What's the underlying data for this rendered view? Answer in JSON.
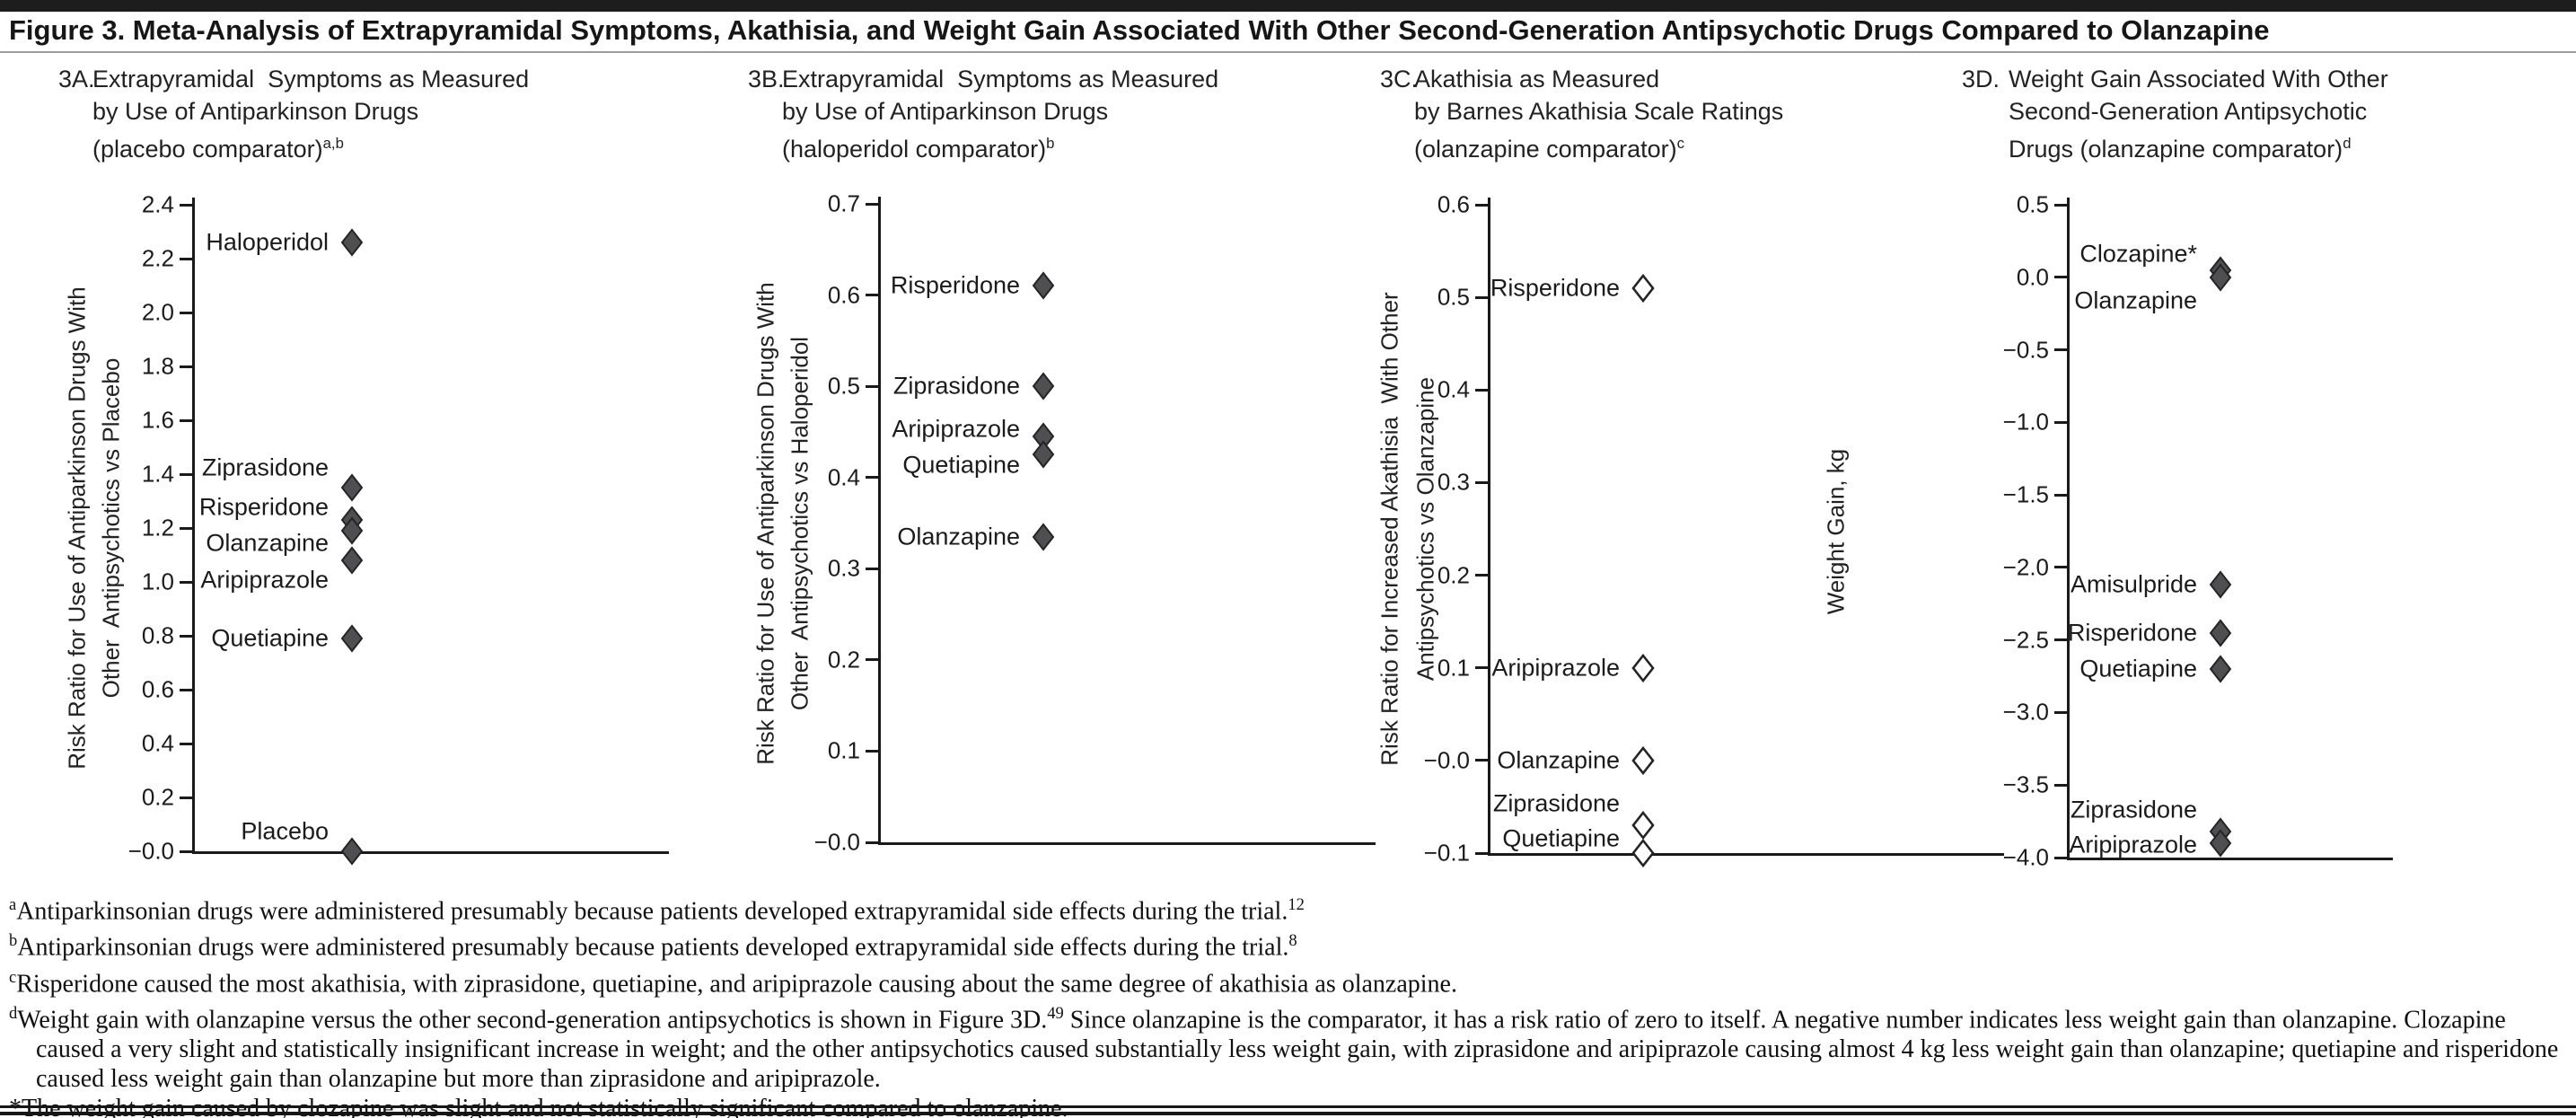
{
  "figure": {
    "title": "Figure 3. Meta-Analysis of Extrapyramidal Symptoms, Akathisia, and Weight Gain Associated With Other Second-Generation Antipsychotic Drugs Compared to Olanzapine"
  },
  "chart_data": [
    {
      "id": "3A",
      "type": "scatter",
      "panel_label": "3A.",
      "title_lines": [
        "Extrapyramidal  Symptoms as Measured",
        "by Use of Antiparkinson Drugs",
        "(placebo comparator)"
      ],
      "title_superscript": "a,b",
      "ylabel_lines": [
        "Risk Ratio for Use of Antiparkinson Drugs With",
        "Other  Antipsychotics vs Placebo"
      ],
      "ylim": [
        0.0,
        2.4
      ],
      "ytick_step": 0.2,
      "marker": "filled-diamond",
      "points": [
        {
          "label": "Haloperidol",
          "value": 2.26,
          "label_dy": 0
        },
        {
          "label": "Ziprasidone",
          "value": 1.35,
          "label_dy": -22
        },
        {
          "label": "Risperidone",
          "value": 1.23,
          "label_dy": -14
        },
        {
          "label": "Olanzapine",
          "value": 1.19,
          "label_dy": 14
        },
        {
          "label": "Aripiprazole",
          "value": 1.08,
          "label_dy": 22
        },
        {
          "label": "Quetiapine",
          "value": 0.79,
          "label_dy": 0
        },
        {
          "label": "Placebo",
          "value": 0.0,
          "label_dy": -22
        }
      ]
    },
    {
      "id": "3B",
      "type": "scatter",
      "panel_label": "3B.",
      "title_lines": [
        "Extrapyramidal  Symptoms as Measured",
        "by Use of Antiparkinson Drugs",
        "(haloperidol comparator)"
      ],
      "title_superscript": "b",
      "ylabel_lines": [
        "Risk Ratio for Use of Antiparkinson Drugs With",
        "Other  Antipsychotics vs Haloperidol"
      ],
      "ylim": [
        0.0,
        0.7
      ],
      "ytick_step": 0.1,
      "marker": "filled-diamond",
      "points": [
        {
          "label": "Risperidone",
          "value": 0.61,
          "label_dy": 0
        },
        {
          "label": "Ziprasidone",
          "value": 0.5,
          "label_dy": 0
        },
        {
          "label": "Aripiprazole",
          "value": 0.445,
          "label_dy": -8
        },
        {
          "label": "Quetiapine",
          "value": 0.425,
          "label_dy": 12
        },
        {
          "label": "Olanzapine",
          "value": 0.335,
          "label_dy": 0
        }
      ]
    },
    {
      "id": "3C",
      "type": "scatter",
      "panel_label": "3C.",
      "title_lines": [
        "Akathisia as Measured",
        "by Barnes Akathisia Scale Ratings",
        "(olanzapine comparator)"
      ],
      "title_superscript": "c",
      "ylabel_lines": [
        "Risk Ratio for Increased Akathisia  With Other",
        "Antipsychotics vs Olanzapine"
      ],
      "ylim": [
        -0.1,
        0.6
      ],
      "ytick_step": 0.1,
      "marker": "open-diamond",
      "points": [
        {
          "label": "Risperidone",
          "value": 0.51,
          "label_dy": 0
        },
        {
          "label": "Aripiprazole",
          "value": 0.1,
          "label_dy": 0
        },
        {
          "label": "Olanzapine",
          "value": 0.0,
          "label_dy": 0
        },
        {
          "label": "Ziprasidone",
          "value": -0.07,
          "label_dy": -24
        },
        {
          "label": "Quetiapine",
          "value": -0.1,
          "label_dy": -16
        }
      ]
    },
    {
      "id": "3D",
      "type": "scatter",
      "panel_label": "3D.",
      "title_lines": [
        "Weight Gain Associated With Other",
        "Second-Generation Antipsychotic",
        "Drugs (olanzapine comparator)"
      ],
      "title_superscript": "d",
      "ylabel_lines": [
        "Weight Gain, kg"
      ],
      "ylim": [
        -4.0,
        0.5
      ],
      "ytick_step": 0.5,
      "marker": "filled-diamond",
      "points": [
        {
          "label": "Clozapine*",
          "value": 0.05,
          "label_dy": -18
        },
        {
          "label": "Olanzapine",
          "value": 0.0,
          "label_dy": 26
        },
        {
          "label": "Amisulpride",
          "value": -2.12,
          "label_dy": 0
        },
        {
          "label": "Risperidone",
          "value": -2.45,
          "label_dy": 0
        },
        {
          "label": "Quetiapine",
          "value": -2.7,
          "label_dy": 0
        },
        {
          "label": "Ziprasidone",
          "value": -3.82,
          "label_dy": -24
        },
        {
          "label": "Aripiprazole",
          "value": -3.9,
          "label_dy": 2
        }
      ]
    }
  ],
  "footnotes": [
    {
      "marker": "a",
      "marker_sup": true,
      "segments": [
        {
          "sup": false,
          "text": "Antiparkinsonian drugs were administered presumably because patients developed extrapyramidal side effects during the trial."
        },
        {
          "sup": true,
          "text": "12"
        }
      ]
    },
    {
      "marker": "b",
      "marker_sup": true,
      "segments": [
        {
          "sup": false,
          "text": "Antiparkinsonian drugs were administered presumably because patients developed extrapyramidal side effects during the trial."
        },
        {
          "sup": true,
          "text": "8"
        }
      ]
    },
    {
      "marker": "c",
      "marker_sup": true,
      "segments": [
        {
          "sup": false,
          "text": "Risperidone caused the most akathisia, with ziprasidone, quetiapine, and aripiprazole causing about the same degree of akathisia as olanzapine."
        }
      ]
    },
    {
      "marker": "d",
      "marker_sup": true,
      "segments": [
        {
          "sup": false,
          "text": "Weight gain with olanzapine versus the other second-generation antipsychotics is shown in Figure 3D."
        },
        {
          "sup": true,
          "text": "49"
        },
        {
          "sup": false,
          "text": " Since olanzapine is the comparator, it has a risk ratio of zero to itself. A negative number indicates less weight gain than olanzapine. Clozapine caused a very slight and statistically insignificant increase in weight; and the other antipsychotics caused substantially less weight gain, with ziprasidone and aripiprazole causing almost 4 kg less weight gain than olanzapine; quetiapine and risperidone caused less weight gain than olanzapine but more than ziprasidone and aripiprazole."
        }
      ]
    },
    {
      "marker": "*",
      "marker_sup": false,
      "segments": [
        {
          "sup": false,
          "text": "The weight gain caused by clozapine was slight and not statistically significant compared to olanzapine."
        }
      ]
    }
  ],
  "colors": {
    "marker_fill": "#4f4f51",
    "marker_stroke": "#242424",
    "open_marker_fill": "#ffffff",
    "axis": "#1a1a1a"
  }
}
